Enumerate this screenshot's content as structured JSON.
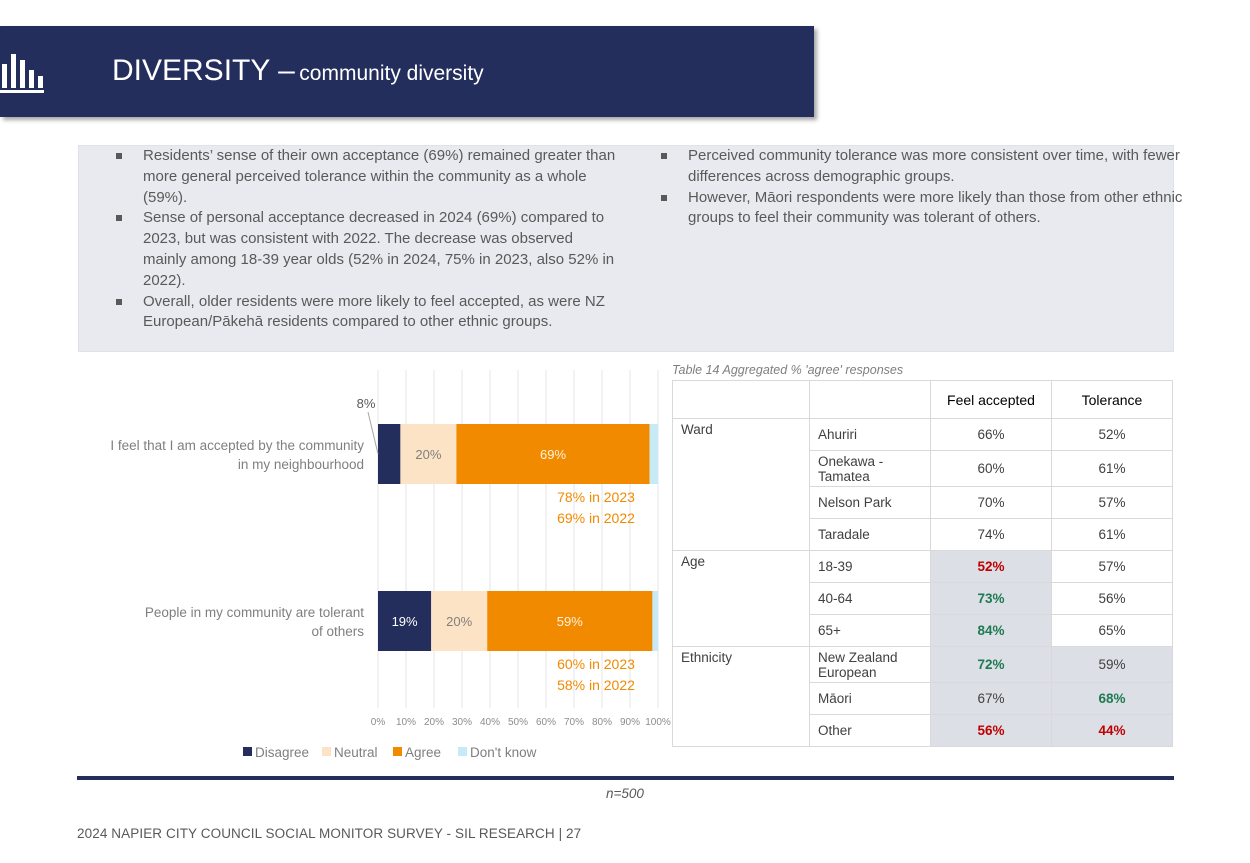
{
  "header": {
    "title_main": "DIVERSITY –",
    "title_sub": "community diversity",
    "icon": "bar-chart-icon"
  },
  "summary": {
    "left_bullets": [
      "Residents’ sense of their own acceptance (69%) remained greater than more general perceived tolerance within the community as a whole (59%).",
      "Sense of personal acceptance decreased in 2024 (69%) compared to 2023, but was consistent with 2022. The decrease was observed mainly among 18-39 year olds (52% in 2024, 75% in 2023, also 52% in 2022).",
      "Overall, older residents were more likely to feel accepted, as were NZ European/Pākehā residents compared to other ethnic groups."
    ],
    "right_bullets": [
      "Perceived community tolerance was more consistent over time, with fewer differences across demographic groups.",
      "However, Māori respondents were more likely than those from other ethnic groups to feel their community was tolerant of others."
    ]
  },
  "chart_data": {
    "type": "bar",
    "orientation": "horizontal",
    "stacked": true,
    "categories": [
      "I feel that I am accepted by the community in my neighbourhood",
      "People in my community are tolerant of others"
    ],
    "series": [
      {
        "name": "Disagree",
        "values": [
          8,
          19
        ],
        "color": "#232e5c"
      },
      {
        "name": "Neutral",
        "values": [
          20,
          20
        ],
        "color": "#fde3c5"
      },
      {
        "name": "Agree",
        "values": [
          69,
          59
        ],
        "color": "#f28a00"
      },
      {
        "name": "Don't know",
        "values": [
          3,
          2
        ],
        "color": "#c6eaf6"
      }
    ],
    "data_labels": [
      [
        "8%",
        "20%",
        "69%",
        ""
      ],
      [
        "19%",
        "20%",
        "59%",
        ""
      ]
    ],
    "annotations": [
      [
        "78% in 2023",
        "69% in 2022"
      ],
      [
        "60% in 2023",
        "58% in 2022"
      ]
    ],
    "x_ticks": [
      "0%",
      "10%",
      "20%",
      "30%",
      "40%",
      "50%",
      "60%",
      "70%",
      "80%",
      "90%",
      "100%"
    ],
    "xlim": [
      0,
      100
    ],
    "grid": true,
    "legend_position": "bottom",
    "annotation_color": "#f28a00"
  },
  "table": {
    "caption": "Table 14 Aggregated % 'agree' responses",
    "headers": [
      "Feel accepted",
      "Tolerance"
    ],
    "groups": {
      "ward": "Ward",
      "age": "Age",
      "ethnicity": "Ethnicity"
    },
    "rows": {
      "ahuriri": {
        "label": "Ahuriri",
        "accepted": "66%",
        "tolerance": "52%"
      },
      "onekawa": {
        "label": "Onekawa - Tamatea",
        "accepted": "60%",
        "tolerance": "61%"
      },
      "nelson": {
        "label": "Nelson Park",
        "accepted": "70%",
        "tolerance": "57%"
      },
      "taradale": {
        "label": "Taradale",
        "accepted": "74%",
        "tolerance": "61%"
      },
      "age1839": {
        "label": "18-39",
        "accepted": "52%",
        "tolerance": "57%"
      },
      "age4064": {
        "label": "40-64",
        "accepted": "73%",
        "tolerance": "56%"
      },
      "age65": {
        "label": "65+",
        "accepted": "84%",
        "tolerance": "65%"
      },
      "nze": {
        "label": "New Zealand European",
        "accepted": "72%",
        "tolerance": "59%"
      },
      "maori": {
        "label": "Māori",
        "accepted": "67%",
        "tolerance": "68%"
      },
      "other": {
        "label": "Other",
        "accepted": "56%",
        "tolerance": "44%"
      }
    },
    "highlight_colors": {
      "higher": "#1e7a52",
      "lower": "#c00000"
    }
  },
  "footer": {
    "n_note": "n=500",
    "text": "2024 NAPIER CITY COUNCIL SOCIAL MONITOR SURVEY - SIL RESEARCH | 27"
  }
}
